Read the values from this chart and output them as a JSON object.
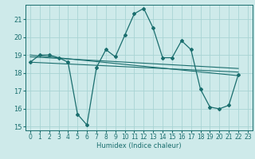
{
  "xlabel": "Humidex (Indice chaleur)",
  "bg_color": "#ceeaea",
  "grid_color": "#a8d4d4",
  "line_color": "#1a6e6e",
  "xlim": [
    -0.5,
    23.5
  ],
  "ylim": [
    14.8,
    21.8
  ],
  "yticks": [
    15,
    16,
    17,
    18,
    19,
    20,
    21
  ],
  "xticks": [
    0,
    1,
    2,
    3,
    4,
    5,
    6,
    7,
    8,
    9,
    10,
    11,
    12,
    13,
    14,
    15,
    16,
    17,
    18,
    19,
    20,
    21,
    22,
    23
  ],
  "series1_x": [
    0,
    1,
    2,
    3,
    4,
    5,
    6,
    7,
    8,
    9,
    10,
    11,
    12,
    13,
    14,
    15,
    16,
    17,
    18,
    19,
    20,
    21,
    22
  ],
  "series1_y": [
    18.6,
    19.0,
    19.0,
    18.85,
    18.6,
    15.7,
    15.1,
    18.3,
    19.3,
    18.9,
    20.1,
    21.3,
    21.6,
    20.5,
    18.85,
    18.85,
    19.8,
    19.3,
    17.1,
    16.1,
    16.0,
    16.2,
    17.9
  ],
  "series2_x": [
    0,
    22
  ],
  "series2_y": [
    19.0,
    17.85
  ],
  "series3_x": [
    0,
    22
  ],
  "series3_y": [
    18.6,
    18.05
  ],
  "series4_x": [
    0,
    22
  ],
  "series4_y": [
    18.9,
    18.25
  ]
}
